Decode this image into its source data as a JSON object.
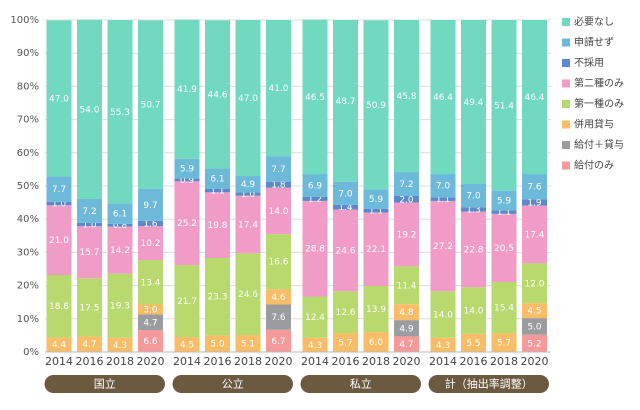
{
  "chart_data": {
    "type": "stacked-bar",
    "categories": [
      "2014",
      "2016",
      "2018",
      "2020",
      "2014",
      "2016",
      "2018",
      "2020",
      "2014",
      "2016",
      "2018",
      "2020",
      "2014",
      "2016",
      "2018",
      "2020"
    ],
    "groups": [
      "国立",
      "公立",
      "私立",
      "計（抽出率調整）"
    ],
    "ylim": [
      0,
      100
    ],
    "yticks": [
      {
        "value": 0,
        "label": "0%"
      },
      {
        "value": 10,
        "label": "10%"
      },
      {
        "value": 20,
        "label": "20%"
      },
      {
        "value": 30,
        "label": "30%"
      },
      {
        "value": 40,
        "label": "40%"
      },
      {
        "value": 50,
        "label": "50%"
      },
      {
        "value": 60,
        "label": "60%"
      },
      {
        "value": 70,
        "label": "70%"
      },
      {
        "value": 80,
        "label": "80%"
      },
      {
        "value": 90,
        "label": "90%"
      },
      {
        "value": 100,
        "label": "100%"
      }
    ],
    "grid": true,
    "legend": "right",
    "series": [
      {
        "name": "給付のみ",
        "color": "#f5999b",
        "values": [
          null,
          null,
          null,
          6.6,
          null,
          null,
          null,
          6.7,
          null,
          null,
          null,
          4.7,
          null,
          null,
          null,
          5.2
        ],
        "value_labels": [
          null,
          null,
          null,
          "6.6",
          null,
          null,
          null,
          "6.7",
          null,
          null,
          null,
          "4.7",
          null,
          null,
          null,
          "5.2"
        ]
      },
      {
        "name": "給付＋貸与",
        "color": "#9b9c9f",
        "values": [
          null,
          null,
          null,
          4.7,
          null,
          null,
          null,
          7.6,
          null,
          null,
          null,
          4.9,
          null,
          null,
          null,
          5.0
        ],
        "value_labels": [
          null,
          null,
          null,
          "4.7",
          null,
          null,
          null,
          "7.6",
          null,
          null,
          null,
          "4.9",
          null,
          null,
          null,
          "5.0"
        ]
      },
      {
        "name": "併用貸与",
        "color": "#f8bd66",
        "values": [
          4.4,
          4.7,
          4.3,
          3.0,
          4.5,
          5.0,
          5.1,
          4.6,
          4.3,
          5.7,
          6.0,
          4.8,
          4.3,
          5.5,
          5.7,
          4.5
        ],
        "value_labels": [
          "4.4",
          "4.7",
          "4.3",
          "3.0",
          "4.5",
          "5.0",
          "5.1",
          "4.6",
          "4.3",
          "5.7",
          "6.0",
          "4.8",
          "4.3",
          "5.5",
          "5.7",
          "4.5"
        ]
      },
      {
        "name": "第一種のみ",
        "color": "#b7d96d",
        "values": [
          18.8,
          17.5,
          19.3,
          13.4,
          21.7,
          23.3,
          24.6,
          16.6,
          12.4,
          12.6,
          13.9,
          11.4,
          14.0,
          14.0,
          15.4,
          12.0
        ],
        "value_labels": [
          "18.8",
          "17.5",
          "19.3",
          "13.4",
          "21.7",
          "23.3",
          "24.6",
          "16.6",
          "12.4",
          "12.6",
          "13.9",
          "11.4",
          "14.0",
          "14.0",
          "15.4",
          "12.0"
        ]
      },
      {
        "name": "第二種のみ",
        "color": "#f19bc7",
        "values": [
          21.0,
          15.7,
          14.2,
          10.2,
          25.2,
          19.8,
          17.4,
          14.0,
          28.8,
          24.6,
          22.1,
          19.2,
          27.2,
          22.8,
          20.5,
          17.4
        ],
        "value_labels": [
          "21.0",
          "15.7",
          "14.2",
          "10.2",
          "25.2",
          "19.8",
          "17.4",
          "14.0",
          "28.8",
          "24.6",
          "22.1",
          "19.2",
          "27.2",
          "22.8",
          "20.5",
          "17.4"
        ]
      },
      {
        "name": "不採用",
        "color": "#5c89c9",
        "values": [
          1.0,
          1.0,
          0.8,
          1.6,
          0.9,
          1.1,
          1.0,
          1.8,
          1.2,
          1.4,
          1.1,
          2.0,
          1.1,
          1.3,
          1.1,
          1.9
        ],
        "value_labels": [
          "1.0",
          "1.0",
          "0.8",
          "1.6",
          "0.9",
          "1.1",
          "1.0",
          "1.8",
          "1.2",
          "1.4",
          "1.1",
          "2.0",
          "1.1",
          "1.3",
          "1.1",
          "1.9"
        ]
      },
      {
        "name": "申請せず",
        "color": "#6cb9da",
        "values": [
          7.7,
          7.2,
          6.1,
          9.7,
          5.9,
          6.1,
          4.9,
          7.7,
          6.9,
          7.0,
          5.9,
          7.2,
          7.0,
          7.0,
          5.9,
          7.6
        ],
        "value_labels": [
          "7.7",
          "7.2",
          "6.1",
          "9.7",
          "5.9",
          "6.1",
          "4.9",
          "7.7",
          "6.9",
          "7.0",
          "5.9",
          "7.2",
          "7.0",
          "7.0",
          "5.9",
          "7.6"
        ]
      },
      {
        "name": "必要なし",
        "color": "#70d9bf",
        "values": [
          47.0,
          54.0,
          55.3,
          50.7,
          41.9,
          44.6,
          47.0,
          41.0,
          46.5,
          48.7,
          50.9,
          45.8,
          46.4,
          49.4,
          51.4,
          46.4
        ],
        "value_labels": [
          "47.0",
          "54.0",
          "55.3",
          "50.7",
          "41.9",
          "44.6",
          "47.0",
          "41.0",
          "46.5",
          "48.7",
          "50.9",
          "45.8",
          "46.4",
          "49.4",
          "51.4",
          "46.4"
        ]
      }
    ]
  }
}
